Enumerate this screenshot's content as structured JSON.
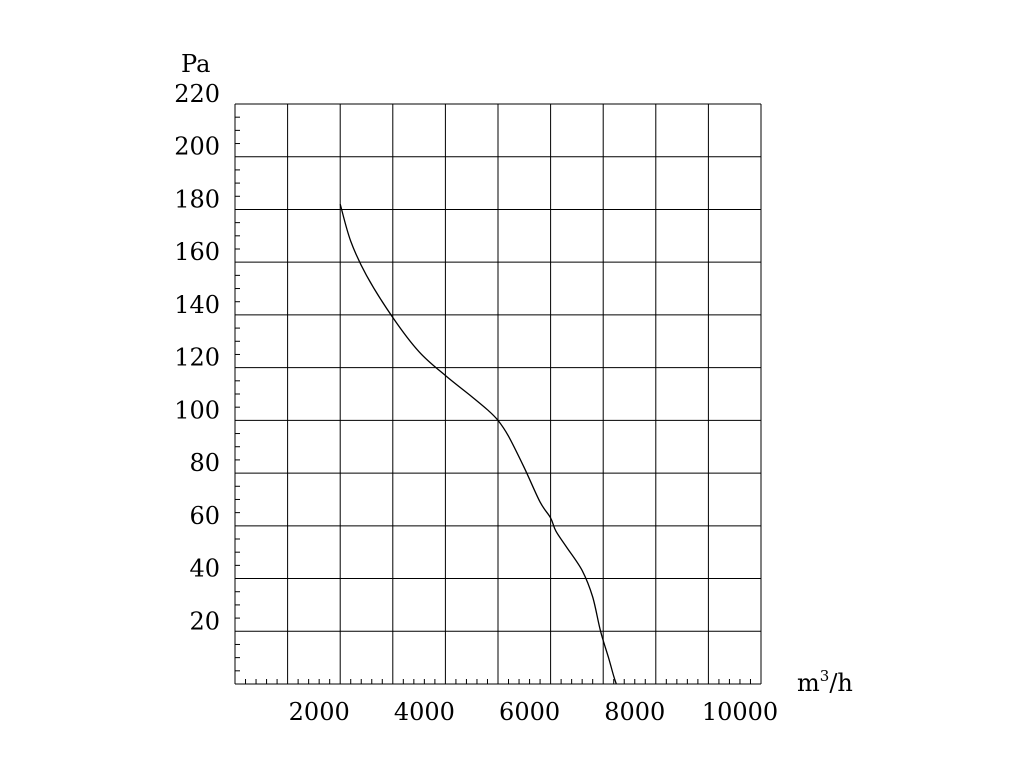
{
  "chart_data": {
    "type": "line",
    "ylabel": "Pa",
    "xlabel": "m3/h",
    "xlabel_parts": {
      "base": "m",
      "sup": "3",
      "rest": "/h"
    },
    "xlim": [
      0,
      10000
    ],
    "ylim": [
      0,
      220
    ],
    "x_ticks": [
      2000,
      4000,
      6000,
      8000,
      10000
    ],
    "y_ticks": [
      20,
      40,
      60,
      80,
      100,
      120,
      140,
      160,
      180,
      200,
      220
    ],
    "x_grid_step": 1000,
    "y_grid_step": 20,
    "grid": true,
    "series": [
      {
        "x": [
          2000,
          2200,
          2500,
          3000,
          3500,
          4000,
          4500,
          4800,
          5000,
          5200,
          5500,
          5800,
          6000,
          6100,
          6300,
          6600,
          6800,
          6950,
          7100,
          7200,
          7250
        ],
        "y": [
          182,
          168,
          155,
          139,
          126,
          117,
          109,
          104,
          100,
          94,
          82,
          69,
          63,
          58,
          52,
          43,
          33,
          20,
          10,
          3,
          0
        ],
        "color": "#000000"
      }
    ]
  }
}
